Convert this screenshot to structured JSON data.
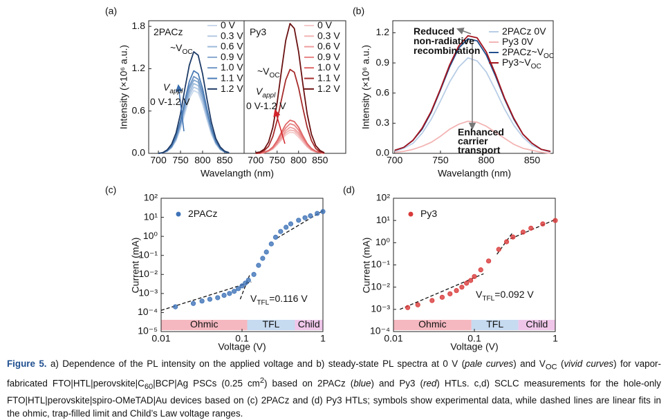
{
  "chart_data": [
    {
      "type": "line",
      "panel_label": "(a)",
      "y_label": "Intensity (×10⁶ a.u.)",
      "x_label": "Wavelangth (nm)",
      "xlim": [
        678,
        894
      ],
      "xticks": [
        700,
        750,
        800,
        850
      ],
      "ylim": [
        0,
        1.88
      ],
      "yticks": [
        {
          "value": 0,
          "label": "0.0"
        },
        0.6,
        1.2,
        1.8
      ],
      "x": [
        700,
        710,
        720,
        730,
        740,
        750,
        760,
        770,
        780,
        790,
        800,
        810,
        820,
        830,
        840,
        850,
        860
      ],
      "series": [
        {
          "name": "0 V",
          "color": "#c9d9ec",
          "values": [
            0.0,
            0.01,
            0.03,
            0.08,
            0.18,
            0.35,
            0.57,
            0.78,
            0.89,
            0.86,
            0.7,
            0.48,
            0.27,
            0.13,
            0.05,
            0.02,
            0.01
          ]
        },
        {
          "name": "0.3 V",
          "color": "#b3c9e3",
          "values": [
            0.0,
            0.01,
            0.03,
            0.08,
            0.19,
            0.37,
            0.6,
            0.82,
            0.94,
            0.91,
            0.74,
            0.5,
            0.29,
            0.14,
            0.06,
            0.02,
            0.01
          ]
        },
        {
          "name": "0.6 V",
          "color": "#9cb9da",
          "values": [
            0.0,
            0.01,
            0.03,
            0.09,
            0.2,
            0.39,
            0.63,
            0.86,
            0.99,
            0.96,
            0.78,
            0.53,
            0.31,
            0.15,
            0.06,
            0.02,
            0.01
          ]
        },
        {
          "name": "0.9 V",
          "color": "#86a8d0",
          "values": [
            0.0,
            0.01,
            0.03,
            0.09,
            0.21,
            0.41,
            0.66,
            0.91,
            1.04,
            1.01,
            0.82,
            0.56,
            0.32,
            0.15,
            0.06,
            0.02,
            0.01
          ]
        },
        {
          "name": "1.0 V",
          "color": "#6e95c4",
          "values": [
            0.0,
            0.01,
            0.04,
            0.1,
            0.22,
            0.43,
            0.7,
            0.95,
            1.09,
            1.05,
            0.86,
            0.58,
            0.34,
            0.16,
            0.07,
            0.02,
            0.01
          ]
        },
        {
          "name": "1.1 V",
          "color": "#4a7bb4",
          "values": [
            0.0,
            0.01,
            0.04,
            0.1,
            0.24,
            0.46,
            0.75,
            1.02,
            1.17,
            1.13,
            0.92,
            0.63,
            0.36,
            0.17,
            0.07,
            0.02,
            0.01
          ]
        },
        {
          "name": "1.2 V",
          "color": "#1d3a66",
          "values": [
            0.0,
            0.01,
            0.05,
            0.13,
            0.29,
            0.56,
            0.92,
            1.25,
            1.44,
            1.39,
            1.13,
            0.77,
            0.44,
            0.21,
            0.09,
            0.03,
            0.01
          ]
        }
      ],
      "annotations": [
        {
          "parts": [
            {
              "text": "2PACz"
            }
          ],
          "color": "#3a6fb0"
        },
        {
          "parts": [
            {
              "text": "~V"
            },
            {
              "text": "OC",
              "sub": true
            }
          ],
          "color": "#3a6fb0"
        },
        {
          "parts": [
            {
              "text": "V",
              "italic": true
            },
            {
              "text": "appl",
              "sub": true,
              "italic": true
            }
          ],
          "color": "#3a6fb0"
        },
        {
          "parts": [
            {
              "text": "0 V-1.2 V"
            }
          ],
          "color": "#3a6fb0"
        }
      ]
    },
    {
      "type": "line",
      "xlim": [
        673,
        910
      ],
      "xticks": [
        700,
        750,
        800,
        850
      ],
      "ylim": [
        0,
        1.88
      ],
      "x": [
        700,
        710,
        720,
        730,
        740,
        750,
        760,
        770,
        780,
        790,
        800,
        810,
        820,
        830,
        840,
        850,
        860
      ],
      "series": [
        {
          "name": "0 V",
          "color": "#f6caca",
          "values": [
            0.0,
            0.0,
            0.01,
            0.03,
            0.06,
            0.12,
            0.19,
            0.26,
            0.3,
            0.29,
            0.23,
            0.16,
            0.09,
            0.04,
            0.02,
            0.01,
            0.0
          ]
        },
        {
          "name": "0.3 V",
          "color": "#f2b4b4",
          "values": [
            0.0,
            0.0,
            0.01,
            0.03,
            0.07,
            0.13,
            0.21,
            0.29,
            0.33,
            0.32,
            0.26,
            0.18,
            0.1,
            0.05,
            0.02,
            0.01,
            0.0
          ]
        },
        {
          "name": "0.6 V",
          "color": "#ee9c9c",
          "values": [
            0.0,
            0.0,
            0.01,
            0.03,
            0.07,
            0.14,
            0.23,
            0.32,
            0.37,
            0.35,
            0.29,
            0.2,
            0.11,
            0.05,
            0.02,
            0.01,
            0.0
          ]
        },
        {
          "name": "0.9 V",
          "color": "#e88383",
          "values": [
            0.0,
            0.0,
            0.01,
            0.04,
            0.08,
            0.16,
            0.27,
            0.36,
            0.42,
            0.4,
            0.33,
            0.22,
            0.13,
            0.06,
            0.03,
            0.01,
            0.0
          ]
        },
        {
          "name": "1.0 V",
          "color": "#df6464",
          "values": [
            0.0,
            0.0,
            0.02,
            0.04,
            0.09,
            0.18,
            0.3,
            0.41,
            0.47,
            0.45,
            0.37,
            0.25,
            0.14,
            0.07,
            0.03,
            0.01,
            0.0
          ]
        },
        {
          "name": "1.1 V",
          "color": "#a62b2b",
          "values": [
            0.0,
            0.01,
            0.04,
            0.1,
            0.24,
            0.47,
            0.76,
            1.04,
            1.19,
            1.15,
            0.93,
            0.64,
            0.37,
            0.18,
            0.07,
            0.02,
            0.01
          ]
        },
        {
          "name": "1.2 V",
          "color": "#6a1010",
          "values": [
            0.01,
            0.02,
            0.06,
            0.16,
            0.37,
            0.72,
            1.17,
            1.6,
            1.84,
            1.77,
            1.44,
            0.98,
            0.56,
            0.27,
            0.11,
            0.04,
            0.01
          ]
        }
      ],
      "annotations": [
        {
          "parts": [
            {
              "text": "Py3"
            }
          ],
          "color": "#d2232a"
        },
        {
          "parts": [
            {
              "text": "~V"
            },
            {
              "text": "OC",
              "sub": true
            }
          ],
          "color": "#d2232a"
        },
        {
          "parts": [
            {
              "text": "V",
              "italic": true
            },
            {
              "text": "appl",
              "sub": true,
              "italic": true
            }
          ],
          "color": "#d2232a"
        },
        {
          "parts": [
            {
              "text": "0 V-1.2 V"
            }
          ],
          "color": "#d2232a"
        }
      ]
    },
    {
      "type": "line",
      "panel_label": "(b)",
      "y_label": "Intensity (×10⁶ a.u.)",
      "x_label": "Wavelangth (nm)",
      "xlim": [
        698,
        873
      ],
      "xticks": [
        700,
        750,
        800,
        850
      ],
      "ylim": [
        0,
        1.32
      ],
      "yticks": [
        {
          "value": 0,
          "label": "0.0"
        },
        0.3,
        0.6,
        0.9,
        1.2
      ],
      "x": [
        700,
        710,
        720,
        730,
        740,
        750,
        760,
        770,
        780,
        790,
        800,
        810,
        820,
        830,
        840,
        850,
        860,
        870
      ],
      "series": [
        {
          "name": "2PACz 0V",
          "color": "#b7cde6",
          "values": [
            0.02,
            0.05,
            0.1,
            0.2,
            0.34,
            0.52,
            0.71,
            0.86,
            0.95,
            0.92,
            0.81,
            0.63,
            0.44,
            0.28,
            0.16,
            0.08,
            0.04,
            0.01
          ]
        },
        {
          "name": "Py3 0V",
          "color": "#f3b4b4",
          "values": [
            0.01,
            0.02,
            0.04,
            0.07,
            0.11,
            0.17,
            0.24,
            0.29,
            0.32,
            0.31,
            0.27,
            0.21,
            0.15,
            0.09,
            0.05,
            0.03,
            0.01,
            0.0
          ]
        },
        {
          "name": "2PACz~V",
          "name_sub": "OC",
          "color": "#1f4e8c",
          "values": [
            0.03,
            0.06,
            0.13,
            0.24,
            0.41,
            0.63,
            0.86,
            1.05,
            1.14,
            1.12,
            0.98,
            0.77,
            0.54,
            0.34,
            0.19,
            0.1,
            0.04,
            0.02
          ]
        },
        {
          "name": "Py3~V",
          "name_sub": "OC",
          "color": "#a3141e",
          "values": [
            0.03,
            0.06,
            0.13,
            0.25,
            0.42,
            0.64,
            0.88,
            1.07,
            1.17,
            1.15,
            1.01,
            0.79,
            0.55,
            0.35,
            0.19,
            0.1,
            0.04,
            0.02
          ]
        }
      ],
      "annotations": [
        {
          "parts": [
            {
              "text": "Reduced"
            }
          ],
          "color": "#333333"
        },
        {
          "parts": [
            {
              "text": "non-radiative"
            }
          ],
          "color": "#333333"
        },
        {
          "parts": [
            {
              "text": "recombination"
            }
          ],
          "color": "#333333"
        },
        {
          "parts": [
            {
              "text": "Enhanced"
            }
          ],
          "color": "#333333"
        },
        {
          "parts": [
            {
              "text": "carrier"
            }
          ],
          "color": "#333333"
        },
        {
          "parts": [
            {
              "text": "transport"
            }
          ],
          "color": "#333333"
        }
      ]
    },
    {
      "type": "scatter",
      "panel_label": "(c)",
      "y_label": "Current (mA)",
      "x_label": "Voltage (V)",
      "xscale": "log",
      "yscale": "log",
      "xlim": [
        0.01,
        1
      ],
      "xticks": [
        0.01,
        0.1,
        1
      ],
      "ylim": [
        1e-05,
        100
      ],
      "yticks": [
        {
          "value": 1e-05,
          "label": "10⁻⁵"
        },
        {
          "value": 0.0001,
          "label": "10⁻⁴"
        },
        {
          "value": 0.001,
          "label": "10⁻³"
        },
        {
          "value": 0.01,
          "label": "10⁻²"
        },
        {
          "value": 0.1,
          "label": "10⁻¹"
        },
        {
          "value": 1,
          "label": "10⁰"
        },
        {
          "value": 10,
          "label": "10¹"
        },
        {
          "value": 100,
          "label": "10²"
        }
      ],
      "series": [
        {
          "name": "2PACz",
          "color": "#3f73b8",
          "x": [
            0.015,
            0.025,
            0.032,
            0.04,
            0.05,
            0.06,
            0.07,
            0.08,
            0.09,
            0.1,
            0.11,
            0.12,
            0.14,
            0.16,
            0.18,
            0.2,
            0.23,
            0.26,
            0.3,
            0.35,
            0.4,
            0.5,
            0.6,
            0.7,
            0.85,
            1
          ],
          "values": [
            0.0002,
            0.0003,
            0.0004,
            0.0005,
            0.0006,
            0.0008,
            0.001,
            0.0013,
            0.0018,
            0.0025,
            0.0035,
            0.005,
            0.01,
            0.03,
            0.07,
            0.15,
            0.4,
            0.9,
            1.8,
            3,
            4.5,
            7,
            9.5,
            12,
            16,
            20
          ]
        }
      ],
      "fits": [
        {
          "x": [
            0.01,
            0.13
          ],
          "y": [
            0.00013,
            0.004
          ]
        },
        {
          "x": [
            0.095,
            0.125
          ],
          "y": [
            0.0005,
            0.01
          ]
        },
        {
          "x": [
            0.27,
            1
          ],
          "y": [
            0.8,
            22
          ]
        }
      ],
      "regions": [
        {
          "label": "Ohmic",
          "from": 0.01,
          "to": 0.116,
          "color": "#f5b8c0"
        },
        {
          "label": "TFL",
          "from": 0.116,
          "to": 0.45,
          "color": "#c6daf0"
        },
        {
          "label": "Child",
          "from": 0.45,
          "to": 1,
          "color": "#efc6ea"
        }
      ],
      "annotations": [
        {
          "parts": [
            {
              "text": "V"
            },
            {
              "text": "TFL",
              "sub": true
            },
            {
              "text": "=0.116 V"
            }
          ],
          "color": "#3a6fb0"
        }
      ]
    },
    {
      "type": "scatter",
      "panel_label": "(d)",
      "y_label": "Current (mA)",
      "x_label": "Voltage (V)",
      "xscale": "log",
      "yscale": "log",
      "xlim": [
        0.01,
        1
      ],
      "xticks": [
        0.01,
        0.1,
        1
      ],
      "ylim": [
        0.0001,
        100
      ],
      "yticks": [
        {
          "value": 0.0001,
          "label": "10⁻⁴"
        },
        {
          "value": 0.001,
          "label": "10⁻³"
        },
        {
          "value": 0.01,
          "label": "10⁻²"
        },
        {
          "value": 0.1,
          "label": "10⁻¹"
        },
        {
          "value": 1,
          "label": "10⁰"
        },
        {
          "value": 10,
          "label": "10¹"
        },
        {
          "value": 100,
          "label": "10²"
        }
      ],
      "series": [
        {
          "name": "Py3",
          "color": "#d93a3a",
          "x": [
            0.015,
            0.02,
            0.03,
            0.04,
            0.05,
            0.06,
            0.07,
            0.08,
            0.09,
            0.1,
            0.12,
            0.15,
            0.2,
            0.25,
            0.3,
            0.4,
            0.5,
            0.7,
            1
          ],
          "values": [
            0.0012,
            0.0016,
            0.0025,
            0.0035,
            0.005,
            0.007,
            0.01,
            0.015,
            0.02,
            0.03,
            0.06,
            0.15,
            0.5,
            1.1,
            1.8,
            3,
            4.5,
            7,
            10
          ]
        }
      ],
      "fits": [
        {
          "x": [
            0.012,
            0.13
          ],
          "y": [
            0.001,
            0.04
          ]
        },
        {
          "x": [
            0.19,
            0.3
          ],
          "y": [
            0.3,
            3
          ]
        },
        {
          "x": [
            0.28,
            1
          ],
          "y": [
            1.5,
            11
          ]
        }
      ],
      "regions": [
        {
          "label": "Ohmic",
          "from": 0.01,
          "to": 0.092,
          "color": "#f5b8c0"
        },
        {
          "label": "TFL",
          "from": 0.092,
          "to": 0.35,
          "color": "#c6daf0"
        },
        {
          "label": "Child",
          "from": 0.35,
          "to": 1,
          "color": "#efc6ea"
        }
      ],
      "annotations": [
        {
          "parts": [
            {
              "text": "V"
            },
            {
              "text": "TFL",
              "sub": true
            },
            {
              "text": "=0.092 V"
            }
          ],
          "color": "#d2232a"
        }
      ]
    }
  ],
  "caption": [
    {
      "text": "Figure 5.",
      "style": "b"
    },
    {
      "text": " a) Dependence of the PL intensity on the applied voltage and b) steady-state PL spectra at 0 V (",
      "style": "n"
    },
    {
      "text": "pale curves",
      "style": "i"
    },
    {
      "text": ") and V",
      "style": "n"
    },
    {
      "text": "OC",
      "style": "sub"
    },
    {
      "text": " (",
      "style": "n"
    },
    {
      "text": "vivid curves",
      "style": "i"
    },
    {
      "text": ") for vapor-fabricated FTO|HTL|perovskite|C",
      "style": "n"
    },
    {
      "text": "60",
      "style": "sub"
    },
    {
      "text": "|BCP|Ag PSCs (0.25 cm",
      "style": "n"
    },
    {
      "text": "2",
      "style": "sup"
    },
    {
      "text": ") based on 2PACz (",
      "style": "n"
    },
    {
      "text": "blue",
      "style": "i"
    },
    {
      "text": ") and Py3 (",
      "style": "n"
    },
    {
      "text": "red",
      "style": "i"
    },
    {
      "text": ") HTLs. c,d) SCLC measurements for the hole-only FTO|HTL|perovskite|spiro-OMeTAD|Au devices based on (c) 2PACz and (d) Py3 HTLs; symbols show experimental data, while dashed lines are linear fits in the ohmic, trap-filled limit and Child’s Law voltage ranges.",
      "style": "n"
    }
  ]
}
